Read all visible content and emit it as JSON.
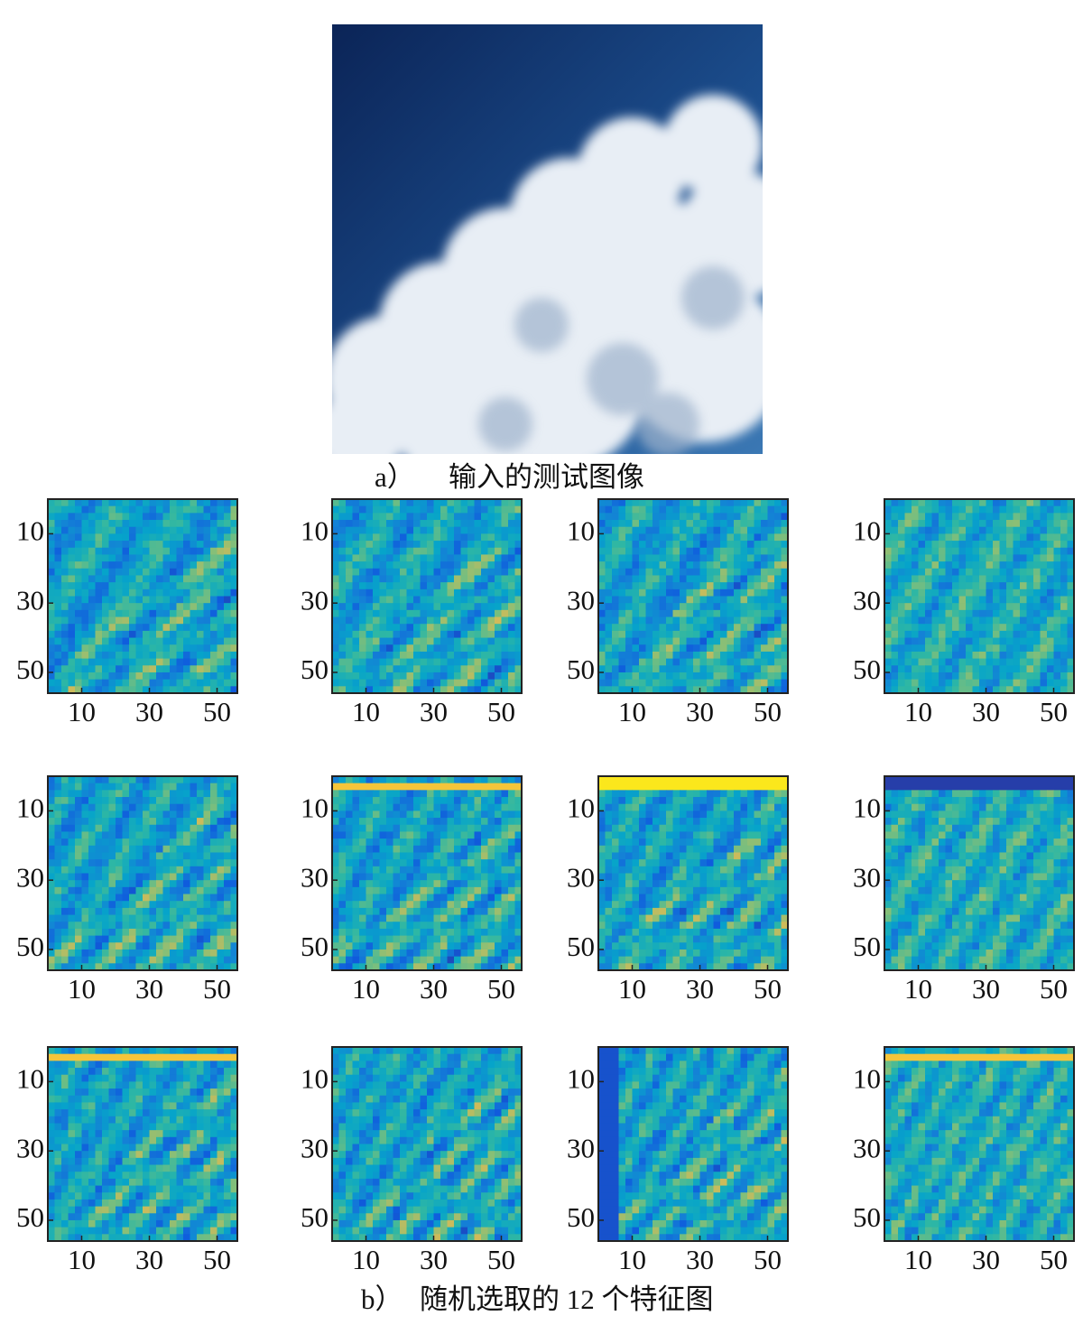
{
  "figure_a": {
    "label": "a）",
    "caption": "输入的测试图像"
  },
  "feature_maps": {
    "xlim": [
      0,
      56
    ],
    "ylim": [
      0,
      56
    ],
    "xticks": [
      10,
      30,
      50
    ],
    "yticks": [
      10,
      30,
      50
    ]
  },
  "figure_b": {
    "label": "b）",
    "caption": "随机选取的 12 个特征图"
  }
}
